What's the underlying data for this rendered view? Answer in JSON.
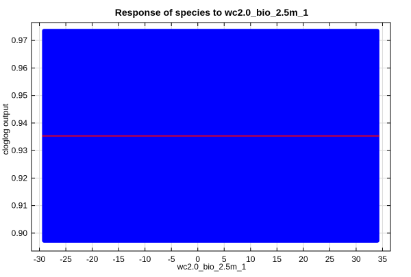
{
  "chart_data": {
    "type": "line",
    "title": "Response of species to wc2.0_bio_2.5m_1",
    "xlabel": "wc2.0_bio_2.5m_1",
    "ylabel": "cloglog output",
    "xlim": [
      -31.5,
      36.5
    ],
    "ylim": [
      0.8935,
      0.9765
    ],
    "x_ticks": [
      -30,
      -25,
      -20,
      -15,
      -10,
      -5,
      0,
      5,
      10,
      15,
      20,
      25,
      30,
      35
    ],
    "y_ticks": [
      0.9,
      0.91,
      0.92,
      0.93,
      0.94,
      0.95,
      0.96,
      0.97
    ],
    "y_tick_labels": [
      "0.90",
      "0.91",
      "0.92",
      "0.93",
      "0.94",
      "0.95",
      "0.96",
      "0.97"
    ],
    "grid": true,
    "legend": false,
    "band": {
      "x": [
        -29.5,
        34.4
      ],
      "lower": 0.8965,
      "upper": 0.9742,
      "color": "#0000ff"
    },
    "series": [
      {
        "x": [
          -29.5,
          34.4
        ],
        "values": [
          0.9353,
          0.9353
        ],
        "color": "#cc0033"
      }
    ]
  }
}
